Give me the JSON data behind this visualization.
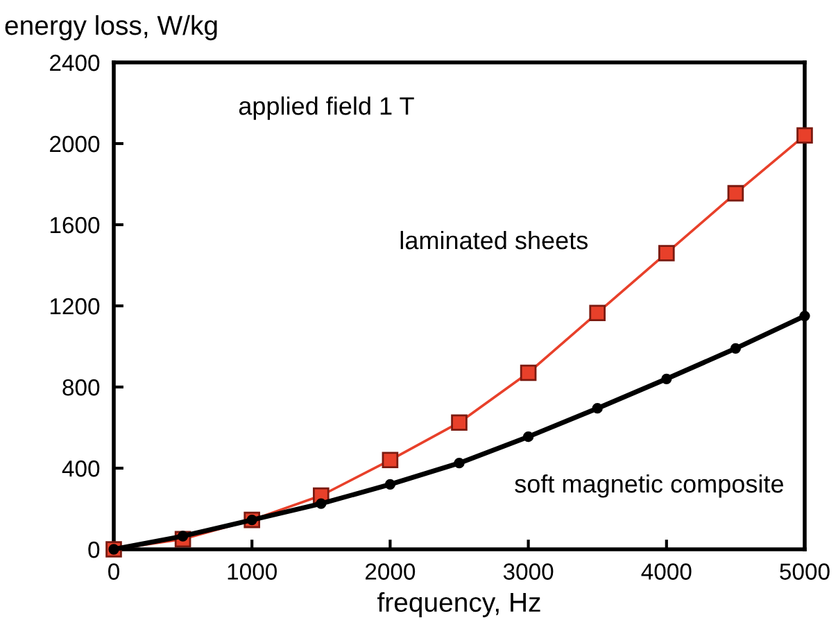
{
  "chart_data": {
    "type": "line",
    "xlabel": "frequency, Hz",
    "ylabel": "energy loss, W/kg",
    "x": [
      0,
      500,
      1000,
      1500,
      2000,
      2500,
      3000,
      3500,
      4000,
      4500,
      5000
    ],
    "series": [
      {
        "name": "laminated sheets",
        "color": "#e8402a",
        "marker": "square",
        "values": [
          0,
          50,
          145,
          265,
          440,
          625,
          870,
          1165,
          1460,
          1755,
          2040
        ]
      },
      {
        "name": "soft magnetic composite",
        "color": "#000000",
        "marker": "circle",
        "values": [
          0,
          65,
          145,
          225,
          320,
          425,
          555,
          695,
          840,
          990,
          1150
        ]
      }
    ],
    "xlim": [
      0,
      5000
    ],
    "xticks": [
      0,
      1000,
      2000,
      3000,
      4000,
      5000
    ],
    "ylim": [
      0,
      2400
    ],
    "yticks": [
      0,
      400,
      800,
      1200,
      1600,
      2000,
      2400
    ],
    "annotations": [
      "applied field 1 T"
    ],
    "grid": false,
    "legend": false
  }
}
